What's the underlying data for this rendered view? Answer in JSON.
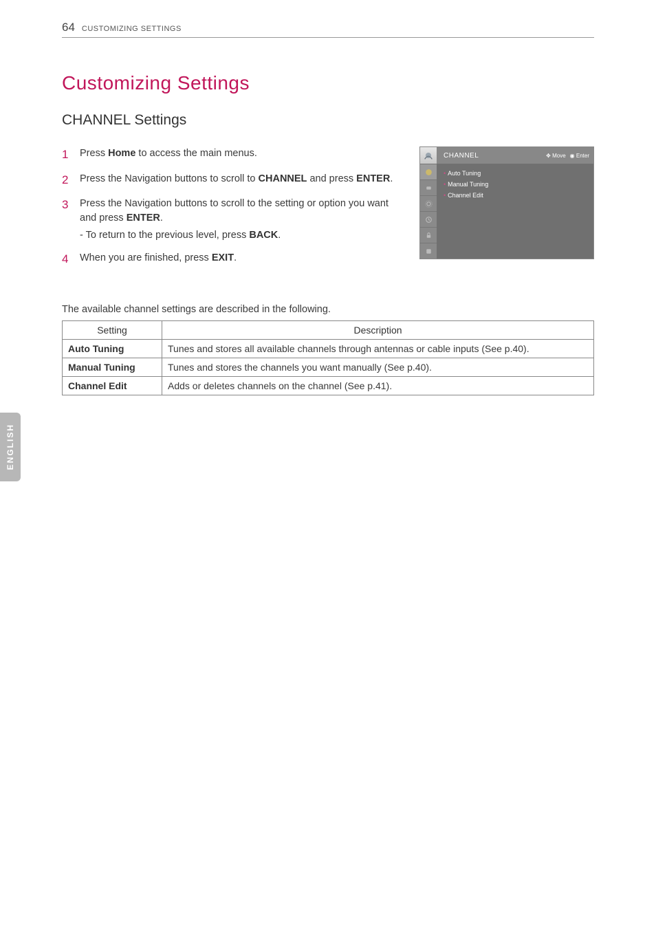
{
  "page_number": "64",
  "header_section": "CUSTOMIZING SETTINGS",
  "h1": "Customizing Settings",
  "h2": "CHANNEL Settings",
  "side_tab": "ENGLISH",
  "steps": [
    {
      "num": "1",
      "parts": [
        "Press ",
        {
          "b": "Home"
        },
        " to access the main menus."
      ]
    },
    {
      "num": "2",
      "parts": [
        "Press the Navigation buttons to scroll to ",
        {
          "b": "CHANNEL"
        },
        " and press ",
        {
          "b": "ENTER"
        },
        "."
      ]
    },
    {
      "num": "3",
      "parts": [
        "Press the Navigation buttons to scroll to the setting or option you want and press ",
        {
          "b": "ENTER"
        },
        "."
      ],
      "sub": [
        "- To return to the previous level, press ",
        {
          "b": "BACK"
        },
        "."
      ]
    },
    {
      "num": "4",
      "parts": [
        "When you are finished, press ",
        {
          "b": "EXIT"
        },
        "."
      ]
    }
  ],
  "osd": {
    "title": "CHANNEL",
    "hint_move": "Move",
    "hint_enter": "Enter",
    "items": [
      "Auto Tuning",
      "Manual Tuning",
      "Channel Edit"
    ]
  },
  "intro_line": "The available channel settings are described in the following.",
  "table": {
    "headers": [
      "Setting",
      "Description"
    ],
    "rows": [
      [
        "Auto Tuning",
        "Tunes and stores all available channels through antennas or cable inputs (See p.40)."
      ],
      [
        "Manual Tuning",
        "Tunes and stores the channels you want manually (See p.40)."
      ],
      [
        "Channel Edit",
        "Adds or deletes channels on the channel (See p.41)."
      ]
    ]
  },
  "colors": {
    "accent": "#c1165a",
    "text": "#3a3a3a",
    "border": "#888888",
    "osd_bg": "#707070",
    "osd_tab": "#8a8a8a",
    "side_tab_bg": "#b7b7b7"
  }
}
